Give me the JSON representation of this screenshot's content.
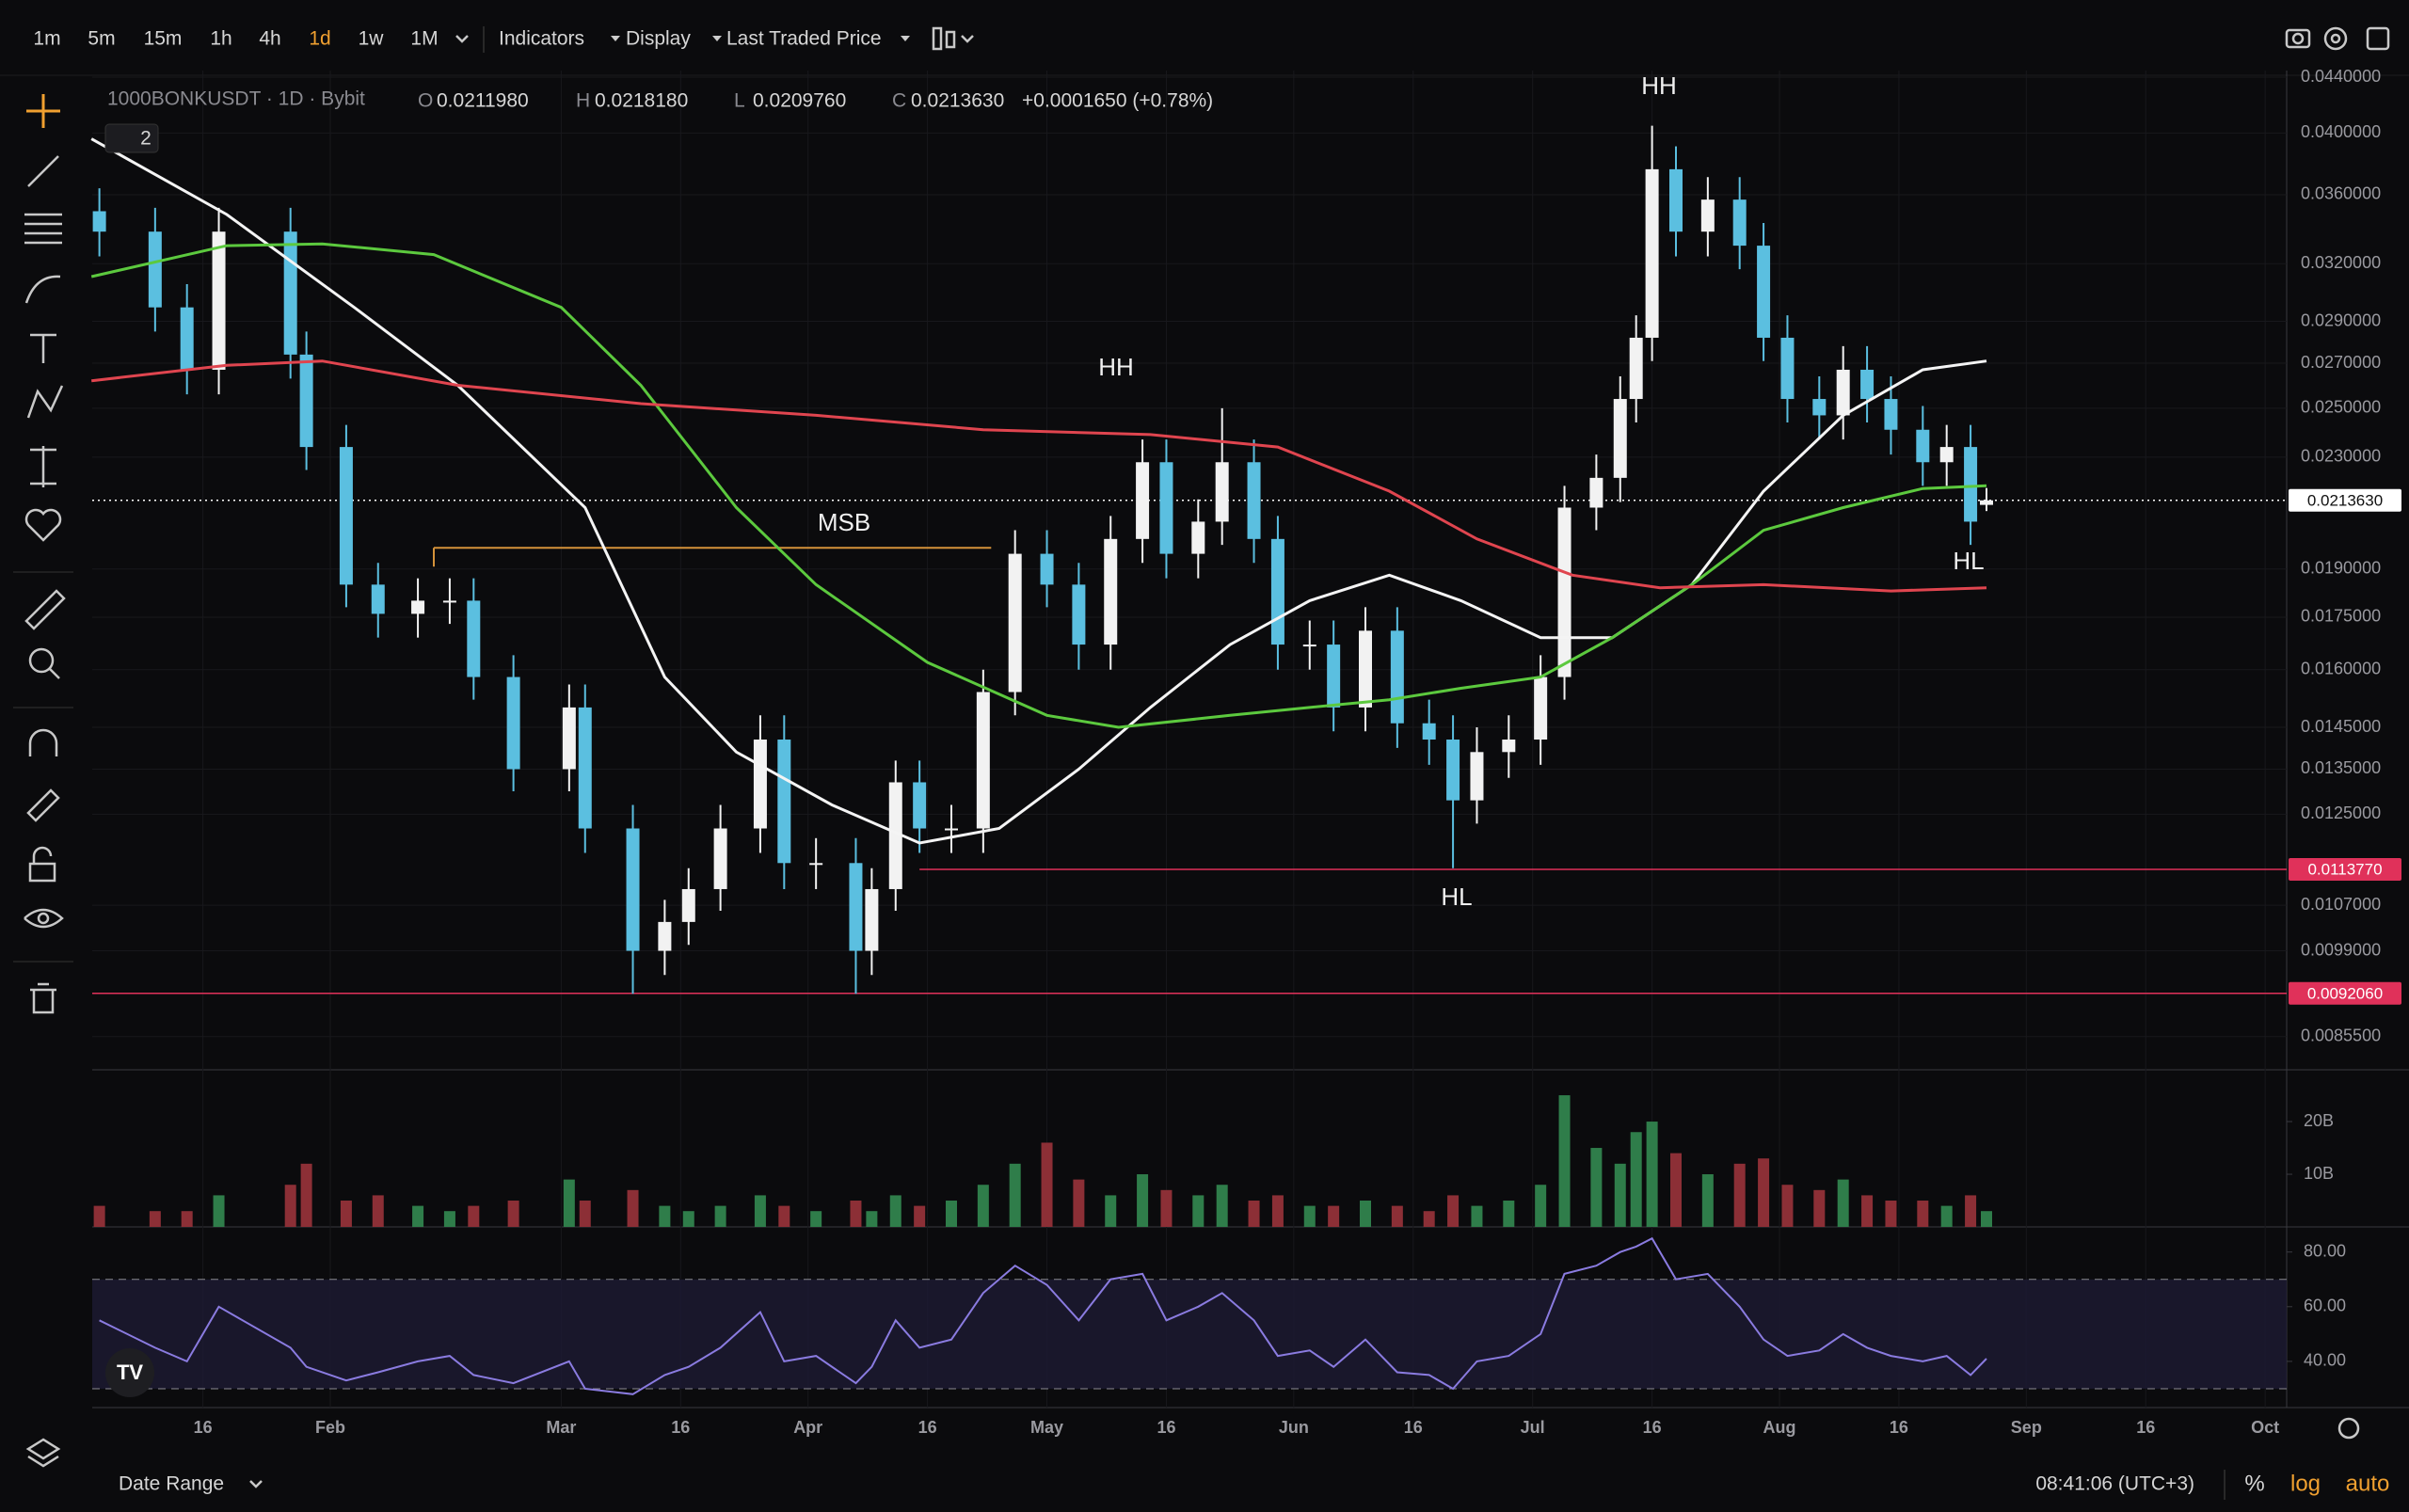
{
  "toolbar": {
    "intervals": [
      "1m",
      "5m",
      "15m",
      "1h",
      "4h",
      "1d",
      "1w",
      "1M"
    ],
    "active": "1d",
    "active_color": "#f0a030",
    "menus": [
      "Indicators",
      "Display",
      "Last Traded Price"
    ]
  },
  "legend": {
    "symbol": "1000BONKUSDT · 1D · Bybit",
    "fields": [
      {
        "key": "O",
        "value": "0.0211980"
      },
      {
        "key": "H",
        "value": "0.0218180"
      },
      {
        "key": "L",
        "value": "0.0209760"
      },
      {
        "key": "C",
        "value": "0.0213630"
      }
    ],
    "change": "+0.0001650 (+0.78%)",
    "indicator_count": "2"
  },
  "chart_data": {
    "type": "candlestick",
    "log_scale": true,
    "up_color": "#f2f2f2",
    "down_color": "#5bbfe0",
    "x": [
      2,
      9,
      13,
      17,
      26,
      28,
      33,
      37,
      42,
      46,
      49,
      54,
      61,
      63,
      69,
      73,
      76,
      80,
      85,
      88,
      92,
      97,
      99,
      102,
      105,
      109,
      113,
      117,
      121,
      125,
      129,
      133,
      136,
      140,
      143,
      147,
      150,
      154,
      157,
      161,
      165,
      169,
      172,
      175,
      179,
      183,
      186,
      190,
      193,
      195,
      197,
      200,
      204,
      208,
      211,
      214,
      218,
      221,
      224,
      227,
      231,
      234,
      237,
      239
    ],
    "open": [
      0.035,
      0.0338,
      0.0297,
      0.0267,
      0.0338,
      0.0274,
      0.0234,
      0.0185,
      0.0176,
      0.018,
      0.018,
      0.0158,
      0.0135,
      0.015,
      0.0122,
      0.0099,
      0.0104,
      0.011,
      0.0122,
      0.0142,
      0.0115,
      0.0115,
      0.0099,
      0.011,
      0.0132,
      0.0122,
      0.0122,
      0.0154,
      0.0195,
      0.0185,
      0.0167,
      0.02,
      0.0228,
      0.0195,
      0.0206,
      0.0228,
      0.02,
      0.0167,
      0.0167,
      0.015,
      0.0171,
      0.0146,
      0.0142,
      0.0128,
      0.0139,
      0.0142,
      0.0158,
      0.0211,
      0.0222,
      0.0254,
      0.0282,
      0.0376,
      0.0338,
      0.0357,
      0.033,
      0.0282,
      0.0254,
      0.0247,
      0.0267,
      0.0254,
      0.0241,
      0.0228,
      0.0234,
      0.021198
    ],
    "high": [
      0.0364,
      0.0352,
      0.0309,
      0.0352,
      0.0352,
      0.0285,
      0.0243,
      0.0192,
      0.0187,
      0.0187,
      0.0187,
      0.0164,
      0.0156,
      0.0156,
      0.0127,
      0.0108,
      0.0114,
      0.0127,
      0.0148,
      0.0148,
      0.012,
      0.012,
      0.0114,
      0.0137,
      0.0137,
      0.0127,
      0.016,
      0.0203,
      0.0203,
      0.0192,
      0.0208,
      0.0237,
      0.0237,
      0.0214,
      0.025,
      0.0237,
      0.0208,
      0.0174,
      0.0174,
      0.0178,
      0.0178,
      0.0152,
      0.0148,
      0.0145,
      0.0148,
      0.0164,
      0.0219,
      0.0231,
      0.0264,
      0.0293,
      0.0405,
      0.0391,
      0.0371,
      0.0371,
      0.0343,
      0.0293,
      0.0264,
      0.0278,
      0.0278,
      0.0264,
      0.0251,
      0.0243,
      0.0243,
      0.021818
    ],
    "low": [
      0.0324,
      0.0285,
      0.0256,
      0.0256,
      0.0263,
      0.0225,
      0.0178,
      0.0169,
      0.0169,
      0.0173,
      0.0152,
      0.013,
      0.013,
      0.0117,
      0.0092,
      0.0095,
      0.01,
      0.0106,
      0.0117,
      0.011,
      0.011,
      0.0092,
      0.0095,
      0.0106,
      0.0117,
      0.0117,
      0.0117,
      0.0148,
      0.0178,
      0.016,
      0.016,
      0.0192,
      0.0187,
      0.0187,
      0.0198,
      0.0192,
      0.016,
      0.016,
      0.0144,
      0.0144,
      0.014,
      0.0136,
      0.0114,
      0.0123,
      0.0133,
      0.0136,
      0.0152,
      0.0203,
      0.0213,
      0.0244,
      0.0271,
      0.0324,
      0.0324,
      0.0317,
      0.0271,
      0.0244,
      0.0237,
      0.0237,
      0.0244,
      0.0231,
      0.0219,
      0.0219,
      0.0198,
      0.020976
    ],
    "close": [
      0.0338,
      0.0297,
      0.0267,
      0.0338,
      0.0274,
      0.0234,
      0.0185,
      0.0176,
      0.018,
      0.018,
      0.0158,
      0.0135,
      0.015,
      0.0122,
      0.0099,
      0.0104,
      0.011,
      0.0122,
      0.0142,
      0.0115,
      0.0115,
      0.0099,
      0.011,
      0.0132,
      0.0122,
      0.0122,
      0.0154,
      0.0195,
      0.0185,
      0.0167,
      0.02,
      0.0228,
      0.0195,
      0.0206,
      0.0228,
      0.02,
      0.0167,
      0.0167,
      0.015,
      0.0171,
      0.0146,
      0.0142,
      0.0128,
      0.0139,
      0.0142,
      0.0158,
      0.0211,
      0.0222,
      0.0254,
      0.0282,
      0.0376,
      0.0338,
      0.0357,
      0.033,
      0.0282,
      0.0254,
      0.0247,
      0.0267,
      0.0254,
      0.0241,
      0.0228,
      0.0234,
      0.0206,
      0.021363
    ],
    "xlim": [
      1.1,
      276.7
    ],
    "xticks": [
      {
        "value": 15,
        "label": "16"
      },
      {
        "value": 31,
        "label": "Feb"
      },
      {
        "value": 60,
        "label": "Mar"
      },
      {
        "value": 75,
        "label": "16"
      },
      {
        "value": 91,
        "label": "Apr"
      },
      {
        "value": 106,
        "label": "16"
      },
      {
        "value": 121,
        "label": "May"
      },
      {
        "value": 136,
        "label": "16"
      },
      {
        "value": 152,
        "label": "Jun"
      },
      {
        "value": 167,
        "label": "16"
      },
      {
        "value": 182,
        "label": "Jul"
      },
      {
        "value": 197,
        "label": "16"
      },
      {
        "value": 213,
        "label": "Aug"
      },
      {
        "value": 228,
        "label": "16"
      },
      {
        "value": 244,
        "label": "Sep"
      },
      {
        "value": 259,
        "label": "16"
      },
      {
        "value": 274,
        "label": "Oct"
      }
    ],
    "ylim": [
      0.00808,
      0.0445
    ],
    "yticks": [
      {
        "value": 0.044,
        "label": "0.0440000"
      },
      {
        "value": 0.04,
        "label": "0.0400000"
      },
      {
        "value": 0.036,
        "label": "0.0360000"
      },
      {
        "value": 0.032,
        "label": "0.0320000"
      },
      {
        "value": 0.029,
        "label": "0.0290000"
      },
      {
        "value": 0.027,
        "label": "0.0270000"
      },
      {
        "value": 0.025,
        "label": "0.0250000"
      },
      {
        "value": 0.023,
        "label": "0.0230000"
      },
      {
        "value": 0.019,
        "label": "0.0190000"
      },
      {
        "value": 0.0175,
        "label": "0.0175000"
      },
      {
        "value": 0.016,
        "label": "0.0160000"
      },
      {
        "value": 0.0145,
        "label": "0.0145000"
      },
      {
        "value": 0.0135,
        "label": "0.0135000"
      },
      {
        "value": 0.0125,
        "label": "0.0125000"
      },
      {
        "value": 0.0107,
        "label": "0.0107000"
      },
      {
        "value": 0.0099,
        "label": "0.0099000"
      },
      {
        "value": 0.00855,
        "label": "0.0085500"
      }
    ],
    "grid": true,
    "moving_averages": [
      {
        "color": "#f4f4f4",
        "x": [
          1,
          18,
          34,
          47,
          63,
          73,
          82,
          94,
          105,
          115,
          125,
          134,
          144,
          154,
          164,
          173,
          183,
          192,
          202,
          211,
          221,
          231,
          239
        ],
        "values": [
          0.0396,
          0.0348,
          0.0297,
          0.026,
          0.0211,
          0.0158,
          0.0139,
          0.0127,
          0.0119,
          0.0122,
          0.0135,
          0.015,
          0.0167,
          0.018,
          0.0188,
          0.018,
          0.0169,
          0.0169,
          0.0185,
          0.0217,
          0.0247,
          0.0267,
          0.0271
        ]
      },
      {
        "color": "#5cc93e",
        "x": [
          1,
          18,
          30,
          44,
          60,
          70,
          82,
          92,
          106,
          121,
          130,
          144,
          154,
          164,
          173,
          183,
          192,
          202,
          211,
          221,
          231,
          239
        ],
        "values": [
          0.0313,
          0.033,
          0.0331,
          0.0325,
          0.0297,
          0.026,
          0.0211,
          0.0185,
          0.0162,
          0.0148,
          0.0145,
          0.0148,
          0.015,
          0.0152,
          0.0155,
          0.0158,
          0.0169,
          0.0185,
          0.0203,
          0.0211,
          0.0218,
          0.0219
        ]
      },
      {
        "color": "#e0454f",
        "x": [
          1,
          18,
          30,
          47,
          70,
          92,
          113,
          134,
          150,
          164,
          175,
          187,
          198,
          211,
          227,
          239
        ],
        "values": [
          0.0262,
          0.0269,
          0.0271,
          0.026,
          0.0252,
          0.0247,
          0.0241,
          0.0239,
          0.0234,
          0.0217,
          0.02,
          0.0188,
          0.0184,
          0.0185,
          0.0183,
          0.0184
        ]
      }
    ],
    "price_lines": [
      {
        "value": 0.021363,
        "label": "0.0213630",
        "color": "#ffffff",
        "dotted": true
      },
      {
        "value": 0.011377,
        "label": "0.0113770",
        "color": "#e0315a",
        "from": 105
      },
      {
        "value": 0.009206,
        "label": "0.0092060",
        "color": "#e0315a"
      }
    ],
    "msb_line": {
      "value": 0.0197,
      "x": [
        44,
        114
      ],
      "color": "#d4923a"
    },
    "annotations": [
      "HH",
      "HH",
      "HL",
      "HL",
      "MSB"
    ],
    "volume": {
      "values": [
        4000000000.0,
        3000000000.0,
        3000000000.0,
        6000000000.0,
        8000000000.0,
        12000000000.0,
        5000000000.0,
        6000000000.0,
        4000000000.0,
        3000000000.0,
        4000000000.0,
        5000000000.0,
        9000000000.0,
        5000000000.0,
        7000000000.0,
        4000000000.0,
        3000000000.0,
        4000000000.0,
        6000000000.0,
        4000000000.0,
        3000000000.0,
        5000000000.0,
        3000000000.0,
        6000000000.0,
        4000000000.0,
        5000000000.0,
        8000000000.0,
        12000000000.0,
        16000000000.0,
        9000000000.0,
        6000000000.0,
        10000000000.0,
        7000000000.0,
        6000000000.0,
        8000000000.0,
        5000000000.0,
        6000000000.0,
        4000000000.0,
        4000000000.0,
        5000000000.0,
        4000000000.0,
        3000000000.0,
        6000000000.0,
        4000000000.0,
        5000000000.0,
        8000000000.0,
        25000000000.0,
        15000000000.0,
        12000000000.0,
        18000000000.0,
        20000000000.0,
        14000000000.0,
        10000000000.0,
        12000000000.0,
        13000000000.0,
        8000000000.0,
        7000000000.0,
        9000000000.0,
        6000000000.0,
        5000000000.0,
        5000000000.0,
        4000000000.0,
        6000000000.0,
        3000000000.0
      ],
      "ylim": [
        0,
        29300000000.0
      ],
      "yticks": [
        {
          "value": 20000000000.0,
          "label": "20B"
        },
        {
          "value": 10000000000.0,
          "label": "10B"
        }
      ],
      "up_color": "#2f7d4a",
      "down_color": "#8c2f36"
    },
    "rsi": {
      "values": [
        55,
        45,
        40,
        60,
        45,
        38,
        33,
        36,
        40,
        42,
        35,
        32,
        40,
        30,
        28,
        35,
        38,
        45,
        58,
        40,
        42,
        32,
        38,
        55,
        45,
        48,
        65,
        75,
        68,
        55,
        70,
        72,
        55,
        60,
        65,
        55,
        42,
        44,
        38,
        48,
        36,
        35,
        30,
        40,
        42,
        50,
        72,
        75,
        80,
        82,
        85,
        70,
        72,
        60,
        48,
        42,
        44,
        50,
        45,
        42,
        40,
        42,
        35,
        41
      ],
      "ylim": [
        23.1,
        88.5
      ],
      "yticks": [
        {
          "value": 80,
          "label": "80.00"
        },
        {
          "value": 60,
          "label": "60.00"
        },
        {
          "value": 40,
          "label": "40.00"
        }
      ],
      "levels": [
        70,
        30
      ],
      "color": "#8a7be0"
    }
  },
  "footer": {
    "date_range": "Date Range",
    "clock": "08:41:06 (UTC+3)",
    "percent": "%",
    "log": "log",
    "auto": "auto"
  }
}
